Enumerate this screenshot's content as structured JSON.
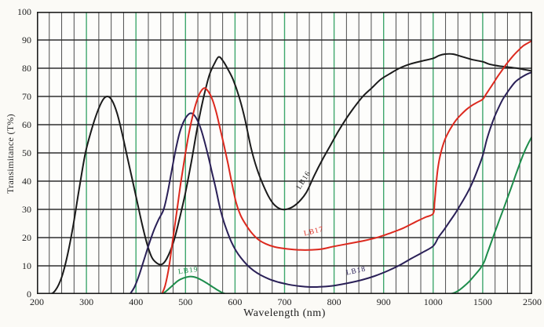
{
  "chart_data": {
    "type": "line",
    "title": "",
    "xlabel": "Wavelength (nm)",
    "ylabel": "Transimitance (T%)",
    "x_axis": {
      "major_ticks": [
        200,
        300,
        400,
        500,
        600,
        700,
        800,
        900,
        1000,
        1500,
        2500
      ],
      "tick_labels": [
        "200",
        "300",
        "400",
        "500",
        "600",
        "700",
        "800",
        "900",
        "1000",
        "1500",
        "2500"
      ],
      "minor_lines_per_interval": 3,
      "green_line_ticks": [
        300,
        400,
        500,
        600,
        700,
        800,
        900,
        1000,
        1500
      ],
      "scale_note": "equal pixel spacing between consecutive labeled majors (axis compressed above 1000 nm)"
    },
    "y_axis": {
      "ticks": [
        0,
        10,
        20,
        30,
        40,
        50,
        60,
        70,
        80,
        90,
        100
      ],
      "range": [
        0,
        100
      ],
      "grid_step": 10
    },
    "grid": {
      "on": true,
      "major_color": "#2f2f2f",
      "minor_color": "#4d4d4d",
      "green_color": "#3fa76d",
      "frame_color": "#1f1f1f"
    },
    "legend_position": "labels-on-curves",
    "series": [
      {
        "name": "LB16",
        "color": "#1b1b1b",
        "label": {
          "text": "LB16",
          "nm": 742,
          "t": 40,
          "rotation": -58
        },
        "points": [
          [
            200,
            0
          ],
          [
            226,
            0
          ],
          [
            238,
            1.5
          ],
          [
            250,
            6
          ],
          [
            262,
            14
          ],
          [
            274,
            25
          ],
          [
            286,
            38
          ],
          [
            298,
            50
          ],
          [
            310,
            58
          ],
          [
            322,
            64.5
          ],
          [
            334,
            69
          ],
          [
            343,
            70
          ],
          [
            352,
            68.5
          ],
          [
            362,
            64
          ],
          [
            372,
            57
          ],
          [
            382,
            49
          ],
          [
            392,
            41
          ],
          [
            402,
            33
          ],
          [
            412,
            25
          ],
          [
            422,
            18
          ],
          [
            432,
            13
          ],
          [
            442,
            11
          ],
          [
            452,
            10.5
          ],
          [
            462,
            12.5
          ],
          [
            475,
            18
          ],
          [
            487,
            26
          ],
          [
            500,
            36
          ],
          [
            512,
            47
          ],
          [
            525,
            60
          ],
          [
            537,
            70
          ],
          [
            548,
            77.5
          ],
          [
            558,
            81.5
          ],
          [
            567,
            84
          ],
          [
            576,
            82.5
          ],
          [
            586,
            79.5
          ],
          [
            596,
            76
          ],
          [
            608,
            70
          ],
          [
            620,
            62
          ],
          [
            632,
            52
          ],
          [
            644,
            44.5
          ],
          [
            656,
            39
          ],
          [
            668,
            34.5
          ],
          [
            680,
            31.5
          ],
          [
            695,
            30
          ],
          [
            712,
            30.5
          ],
          [
            728,
            32.5
          ],
          [
            744,
            36
          ],
          [
            760,
            42
          ],
          [
            776,
            47.5
          ],
          [
            792,
            52.5
          ],
          [
            808,
            57.5
          ],
          [
            824,
            62
          ],
          [
            840,
            66
          ],
          [
            858,
            70
          ],
          [
            876,
            73
          ],
          [
            894,
            76
          ],
          [
            912,
            78
          ],
          [
            932,
            80
          ],
          [
            954,
            81.5
          ],
          [
            976,
            82.5
          ],
          [
            1000,
            83.5
          ],
          [
            1060,
            84.5
          ],
          [
            1120,
            85
          ],
          [
            1200,
            85
          ],
          [
            1300,
            84
          ],
          [
            1400,
            83
          ],
          [
            1500,
            82.3
          ],
          [
            1620,
            81.5
          ],
          [
            1750,
            81
          ],
          [
            1900,
            80.6
          ],
          [
            2050,
            80.3
          ],
          [
            2200,
            80
          ],
          [
            2350,
            79.5
          ],
          [
            2500,
            79
          ]
        ]
      },
      {
        "name": "LB18",
        "color": "#2a2057",
        "label": {
          "text": "LB18",
          "nm": 845,
          "t": 7.5,
          "rotation": -12
        },
        "points": [
          [
            388,
            0
          ],
          [
            397,
            2.5
          ],
          [
            406,
            6.5
          ],
          [
            416,
            12
          ],
          [
            426,
            17.5
          ],
          [
            436,
            22.5
          ],
          [
            446,
            26.5
          ],
          [
            456,
            30
          ],
          [
            464,
            36
          ],
          [
            472,
            43.5
          ],
          [
            480,
            51
          ],
          [
            488,
            57
          ],
          [
            496,
            61
          ],
          [
            505,
            63.5
          ],
          [
            513,
            64
          ],
          [
            521,
            62.5
          ],
          [
            529,
            59.5
          ],
          [
            537,
            55
          ],
          [
            545,
            49.5
          ],
          [
            553,
            43.5
          ],
          [
            561,
            37.5
          ],
          [
            569,
            31
          ],
          [
            577,
            25.8
          ],
          [
            585,
            21.8
          ],
          [
            593,
            18.3
          ],
          [
            602,
            15.3
          ],
          [
            612,
            12.8
          ],
          [
            624,
            10.4
          ],
          [
            637,
            8.4
          ],
          [
            652,
            6.7
          ],
          [
            669,
            5.3
          ],
          [
            688,
            4.2
          ],
          [
            708,
            3.4
          ],
          [
            730,
            2.8
          ],
          [
            752,
            2.5
          ],
          [
            776,
            2.6
          ],
          [
            800,
            3
          ],
          [
            828,
            3.9
          ],
          [
            856,
            5
          ],
          [
            882,
            6.4
          ],
          [
            908,
            8.2
          ],
          [
            932,
            10.2
          ],
          [
            956,
            12.6
          ],
          [
            978,
            14.7
          ],
          [
            1000,
            17
          ],
          [
            1055,
            20.2
          ],
          [
            1110,
            22.8
          ],
          [
            1165,
            25.6
          ],
          [
            1225,
            28.7
          ],
          [
            1285,
            32.2
          ],
          [
            1345,
            35.8
          ],
          [
            1405,
            40.2
          ],
          [
            1455,
            44.6
          ],
          [
            1500,
            49
          ],
          [
            1580,
            54.5
          ],
          [
            1660,
            59
          ],
          [
            1740,
            62.8
          ],
          [
            1820,
            66
          ],
          [
            1900,
            68.8
          ],
          [
            1980,
            71
          ],
          [
            2060,
            73
          ],
          [
            2150,
            75
          ],
          [
            2240,
            76.3
          ],
          [
            2330,
            77.3
          ],
          [
            2420,
            78.1
          ],
          [
            2500,
            78.6
          ]
        ]
      },
      {
        "name": "LB19",
        "color": "#1d8c4b",
        "label": {
          "text": "LB19",
          "nm": 506,
          "t": 7.6,
          "rotation": -8
        },
        "points": [
          [
            452,
            0
          ],
          [
            460,
            0.9
          ],
          [
            468,
            2.1
          ],
          [
            476,
            3.4
          ],
          [
            484,
            4.6
          ],
          [
            492,
            5.4
          ],
          [
            500,
            5.9
          ],
          [
            508,
            6.2
          ],
          [
            516,
            6.1
          ],
          [
            524,
            5.7
          ],
          [
            532,
            5
          ],
          [
            540,
            4.2
          ],
          [
            548,
            3.3
          ],
          [
            556,
            2.4
          ],
          [
            564,
            1.5
          ],
          [
            572,
            0.7
          ],
          [
            581,
            0.1
          ],
          [
            595,
            0
          ],
          [
            650,
            0
          ],
          [
            750,
            0
          ],
          [
            850,
            0
          ],
          [
            950,
            0
          ],
          [
            1050,
            0
          ],
          [
            1140,
            0
          ],
          [
            1200,
            0.3
          ],
          [
            1255,
            1.2
          ],
          [
            1310,
            2.7
          ],
          [
            1365,
            4.5
          ],
          [
            1420,
            6.7
          ],
          [
            1475,
            9
          ],
          [
            1530,
            11.4
          ],
          [
            1600,
            14.8
          ],
          [
            1670,
            18.2
          ],
          [
            1740,
            21.6
          ],
          [
            1810,
            25
          ],
          [
            1880,
            28.3
          ],
          [
            1950,
            31.6
          ],
          [
            2020,
            35
          ],
          [
            2090,
            38.4
          ],
          [
            2160,
            41.9
          ],
          [
            2230,
            45.3
          ],
          [
            2300,
            48.6
          ],
          [
            2370,
            51.5
          ],
          [
            2440,
            54
          ],
          [
            2500,
            56
          ]
        ]
      },
      {
        "name": "LB17",
        "color": "#dc291e",
        "label": {
          "text": "LB17",
          "nm": 760,
          "t": 21.5,
          "rotation": -14
        },
        "points": [
          [
            452,
            0
          ],
          [
            459,
            3
          ],
          [
            467,
            10
          ],
          [
            475,
            20
          ],
          [
            483,
            30
          ],
          [
            491,
            40
          ],
          [
            499,
            49
          ],
          [
            507,
            57
          ],
          [
            515,
            63.5
          ],
          [
            523,
            68.5
          ],
          [
            530,
            71.5
          ],
          [
            538,
            73
          ],
          [
            546,
            71.8
          ],
          [
            554,
            69
          ],
          [
            562,
            64.5
          ],
          [
            570,
            58.5
          ],
          [
            578,
            52.5
          ],
          [
            586,
            46
          ],
          [
            594,
            39
          ],
          [
            602,
            32.5
          ],
          [
            611,
            28
          ],
          [
            621,
            24.8
          ],
          [
            633,
            21.8
          ],
          [
            647,
            19.3
          ],
          [
            662,
            17.8
          ],
          [
            680,
            16.7
          ],
          [
            700,
            16.1
          ],
          [
            724,
            15.7
          ],
          [
            748,
            15.6
          ],
          [
            773,
            15.9
          ],
          [
            800,
            16.9
          ],
          [
            830,
            17.9
          ],
          [
            860,
            18.9
          ],
          [
            890,
            20.2
          ],
          [
            915,
            21.7
          ],
          [
            940,
            23.4
          ],
          [
            965,
            25.6
          ],
          [
            984,
            27.2
          ],
          [
            1000,
            28.5
          ],
          [
            1014,
            32.5
          ],
          [
            1028,
            38
          ],
          [
            1042,
            43
          ],
          [
            1058,
            46.8
          ],
          [
            1076,
            49.8
          ],
          [
            1096,
            52.4
          ],
          [
            1122,
            55
          ],
          [
            1152,
            57.2
          ],
          [
            1190,
            59.5
          ],
          [
            1235,
            61.8
          ],
          [
            1285,
            63.7
          ],
          [
            1340,
            65.5
          ],
          [
            1395,
            66.9
          ],
          [
            1450,
            68
          ],
          [
            1500,
            69
          ],
          [
            1570,
            70.8
          ],
          [
            1645,
            72.8
          ],
          [
            1720,
            74.8
          ],
          [
            1800,
            77
          ],
          [
            1880,
            79
          ],
          [
            1960,
            81
          ],
          [
            2040,
            82.8
          ],
          [
            2130,
            84.7
          ],
          [
            2220,
            86.3
          ],
          [
            2310,
            87.8
          ],
          [
            2400,
            88.8
          ],
          [
            2500,
            89.8
          ]
        ]
      }
    ]
  }
}
